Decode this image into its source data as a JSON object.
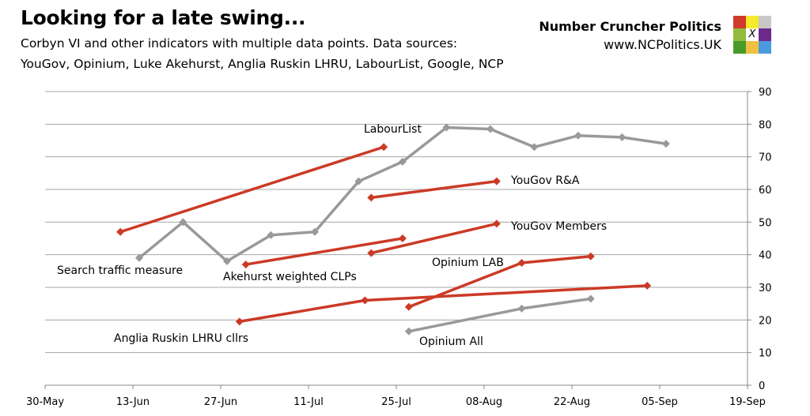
{
  "header": {
    "title": "Looking for a late swing...",
    "subtitle_line1": "Corbyn VI and other indicators with multiple data points. Data sources:",
    "subtitle_line2": "YouGov, Opinium, Luke Akehurst, Anglia Ruskin LHRU, LabourList, Google, NCP"
  },
  "brand": {
    "name": "Number Cruncher Politics",
    "url": "www.NCPolitics.UK",
    "logo_colors": [
      "#d03a2a",
      "#f5ea2c",
      "#c8c8c8",
      "#92bb3d",
      "#ffffff",
      "#6d2a8c",
      "#4a9a2a",
      "#f0c040",
      "#4a9ae0"
    ],
    "logo_mark": "X"
  },
  "chart_data": {
    "type": "line",
    "title": "Looking for a late swing...",
    "xlabel": "",
    "ylabel": "",
    "x_ticks": [
      "30-May",
      "13-Jun",
      "27-Jun",
      "11-Jul",
      "25-Jul",
      "08-Aug",
      "22-Aug",
      "05-Sep",
      "19-Sep"
    ],
    "xlim": [
      "30-May",
      "19-Sep"
    ],
    "y_ticks": [
      0,
      10,
      20,
      30,
      40,
      50,
      60,
      70,
      80,
      90
    ],
    "ylim": [
      0,
      90
    ],
    "y_axis_side": "right",
    "grid": true,
    "legend": "none (direct labels)",
    "series": [
      {
        "name": "LabourList",
        "color": "#cc3a26",
        "x": [
          "11-Jun",
          "23-Jul"
        ],
        "y": [
          47,
          73
        ]
      },
      {
        "name": "Search traffic measure",
        "color": "#999999",
        "x": [
          "14-Jun",
          "21-Jun",
          "28-Jun",
          "05-Jul",
          "12-Jul",
          "19-Jul",
          "26-Jul",
          "02-Aug",
          "09-Aug",
          "16-Aug",
          "23-Aug",
          "30-Aug",
          "06-Sep"
        ],
        "y": [
          39,
          50,
          38,
          46,
          47,
          62.5,
          68.5,
          79,
          78.5,
          73,
          76.5,
          76,
          74
        ]
      },
      {
        "name": "YouGov R&A",
        "color": "#cc3a26",
        "x": [
          "21-Jul",
          "10-Aug"
        ],
        "y": [
          57.5,
          62.5
        ]
      },
      {
        "name": "YouGov Members",
        "color": "#cc3a26",
        "x": [
          "21-Jul",
          "10-Aug"
        ],
        "y": [
          40.5,
          49.5
        ]
      },
      {
        "name": "Akehurst weighted CLPs",
        "color": "#cc3a26",
        "x": [
          "01-Jul",
          "26-Jul"
        ],
        "y": [
          37,
          45
        ]
      },
      {
        "name": "Opinium LAB",
        "color": "#cc3a26",
        "x": [
          "27-Jul",
          "14-Aug",
          "25-Aug"
        ],
        "y": [
          24,
          37.5,
          39.5
        ]
      },
      {
        "name": "Anglia Ruskin LHRU cllrs",
        "color": "#cc3a26",
        "x": [
          "30-Jun",
          "20-Jul",
          "03-Sep"
        ],
        "y": [
          19.5,
          26,
          30.5
        ]
      },
      {
        "name": "Opinium All",
        "color": "#999999",
        "x": [
          "27-Jul",
          "14-Aug",
          "25-Aug"
        ],
        "y": [
          16.5,
          23.5,
          26.5
        ]
      }
    ]
  }
}
